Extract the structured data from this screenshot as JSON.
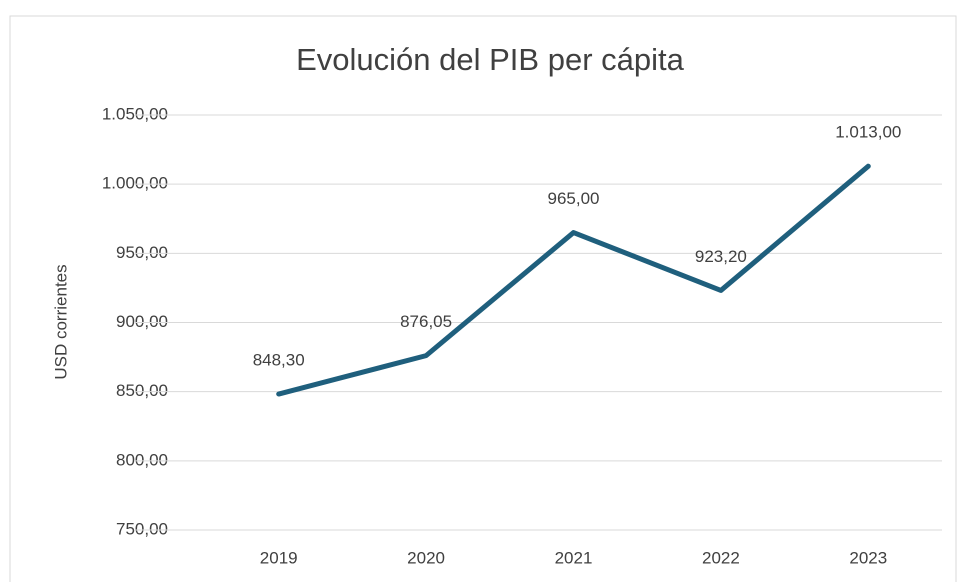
{
  "chart_data": {
    "type": "line",
    "title": "Evolución del PIB per cápita",
    "ylabel": "USD corrientes",
    "categories": [
      "2019",
      "2020",
      "2021",
      "2022",
      "2023"
    ],
    "series": [
      {
        "name": "PIB per cápita",
        "color": "#1f5f7d",
        "values": [
          848.3,
          876.05,
          965,
          923.2,
          1013
        ],
        "value_labels": [
          "848,30",
          "876,05",
          "965,00",
          "923,20",
          "1.013,00"
        ]
      }
    ],
    "ylim": [
      750,
      1050
    ],
    "yticks": [
      {
        "value": 750,
        "label": "750,00"
      },
      {
        "value": 800,
        "label": "800,00"
      },
      {
        "value": 850,
        "label": "850,00"
      },
      {
        "value": 900,
        "label": "900,00"
      },
      {
        "value": 950,
        "label": "950,00"
      },
      {
        "value": 1000,
        "label": "1.000,00"
      },
      {
        "value": 1050,
        "label": "1.050,00"
      }
    ],
    "grid": true
  }
}
